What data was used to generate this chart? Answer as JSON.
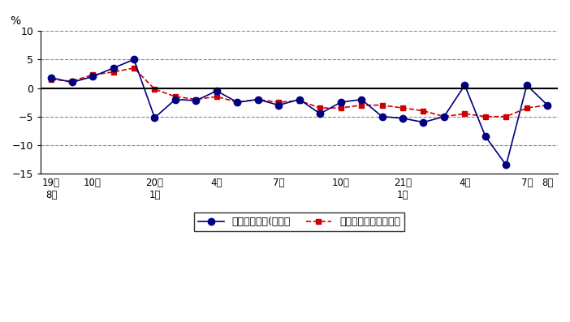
{
  "title": "",
  "ylabel": "%",
  "ylim": [
    -15,
    10
  ],
  "yticks": [
    -15,
    -10,
    -5,
    0,
    5,
    10
  ],
  "x_tick_positions": [
    0,
    2,
    5,
    8,
    11,
    14,
    17,
    20,
    23,
    24
  ],
  "x_tick_labels": [
    "19年\n8月",
    "10月",
    "20年\n1月",
    "4月",
    "7月",
    "10月",
    "21年\n1月",
    "4月",
    "7月",
    "8月"
  ],
  "blue_values": [
    1.8,
    1.0,
    2.0,
    3.5,
    5.0,
    -5.2,
    -2.0,
    -2.2,
    -0.5,
    -2.5,
    -2.0,
    -3.0,
    -2.0,
    -4.5,
    -2.5,
    -2.0,
    -5.0,
    -5.3,
    -6.0,
    -5.0,
    0.5,
    -8.5,
    -13.5,
    0.5,
    -3.0
  ],
  "red_values": [
    1.5,
    1.2,
    2.3,
    2.8,
    3.5,
    -0.2,
    -1.5,
    -2.0,
    -1.5,
    -2.5,
    -2.0,
    -2.5,
    -2.2,
    -3.5,
    -3.5,
    -3.0,
    -3.0,
    -3.5,
    -4.0,
    -5.0,
    -4.5,
    -5.0,
    -5.0,
    -3.5,
    -3.0
  ],
  "blue_color": "#000080",
  "red_color": "#cc0000",
  "legend_blue": "現金給与総額(名目）",
  "legend_red": "きまって支給する給与",
  "grid_color": "#888888",
  "background_color": "#ffffff"
}
